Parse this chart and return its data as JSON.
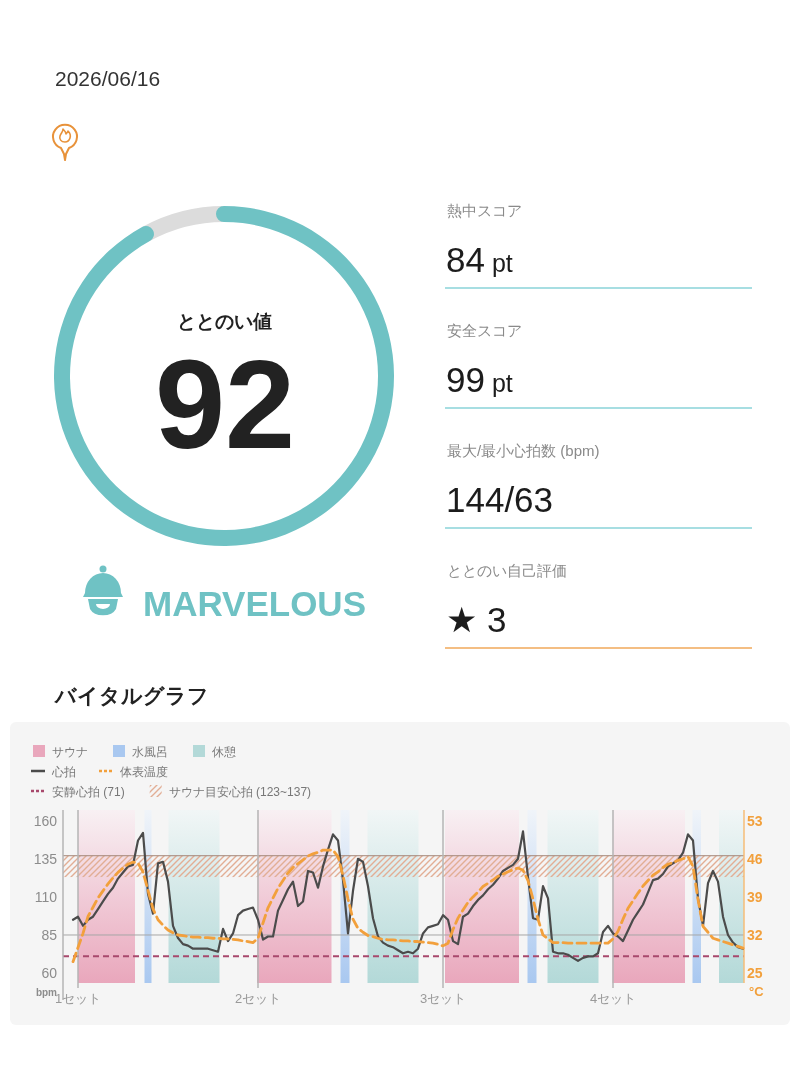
{
  "chart_data": [
    {
      "type": "other",
      "annotations": [
        "2026/06/16"
      ]
    },
    {
      "type": "donut",
      "title": "ととのい値",
      "categories": [
        null,
        null
      ],
      "values": [
        92,
        8
      ],
      "colors": [
        "#6fc2c4",
        "#dcdcdc"
      ],
      "value_labels": [
        "92",
        null
      ],
      "annotations": [
        "MARVELOUS"
      ]
    },
    {
      "type": "other",
      "annotations": [
        "熱中スコア",
        "84 pt",
        "安全スコア",
        "99 pt",
        "最大/最小心拍数 (bpm)",
        "144/63",
        "ととのい自己評価",
        "★ 3"
      ]
    },
    {
      "type": "line",
      "title": "バイタルグラフ",
      "ylabel": "bpm",
      "y2label": "°C",
      "annotations": [
        "サウナ",
        "水風呂",
        "休憩"
      ],
      "categories": [
        null,
        "1セット",
        null,
        null,
        null,
        null,
        null,
        null,
        null,
        null,
        null,
        null,
        null,
        null,
        null,
        null,
        null,
        null,
        null,
        null,
        null,
        null,
        null,
        null,
        null,
        null,
        null,
        null,
        null,
        null,
        null,
        null,
        null,
        null,
        null,
        null,
        null,
        "2セット",
        null,
        null,
        null,
        null,
        null,
        null,
        null,
        null,
        null,
        null,
        null,
        null,
        null,
        null,
        null,
        null,
        null,
        null,
        null,
        null,
        null,
        null,
        null,
        null,
        null,
        null,
        null,
        null,
        null,
        null,
        null,
        null,
        null,
        null,
        null,
        null,
        "3セット",
        null,
        null,
        null,
        null,
        null,
        null,
        null,
        null,
        null,
        null,
        null,
        null,
        null,
        null,
        null,
        null,
        null,
        null,
        null,
        null,
        null,
        null,
        null,
        null,
        null,
        null,
        null,
        null,
        null,
        null,
        null,
        null,
        null,
        "4セット",
        null,
        null,
        null,
        null,
        null,
        null,
        null,
        null,
        null,
        null,
        null,
        null,
        null,
        null,
        null,
        null,
        null,
        null,
        null,
        null,
        null,
        null,
        null,
        null,
        null,
        null
      ],
      "ylim": [
        53.5,
        167
      ],
      "yticks": [
        60,
        85,
        110,
        135,
        160
      ],
      "y2lim": [
        23.18,
        54.96
      ],
      "y2ticks": [
        25,
        32,
        39,
        46,
        53
      ],
      "grid": "x",
      "legend": "top left",
      "series": [
        {
          "name": "心拍",
          "color": "#4b4b4b",
          "values": [
            95,
            97,
            91,
            95,
            97,
            102,
            107,
            112,
            116,
            122,
            126,
            130,
            131,
            147,
            152,
            112,
            99,
            132,
            133,
            120,
            91,
            83,
            79,
            78,
            76,
            76,
            76,
            76,
            75,
            74,
            89,
            81,
            86,
            98,
            101,
            102,
            103,
            95,
            82,
            84,
            84,
            101,
            108,
            115,
            120,
            104,
            107,
            127,
            126,
            116,
            130,
            141,
            151,
            147,
            121,
            86,
            114,
            135,
            133,
            117,
            96,
            84,
            80,
            78,
            77,
            75,
            73,
            74,
            73,
            76,
            86,
            90,
            91,
            92,
            98,
            95,
            81,
            79,
            97,
            99,
            104,
            108,
            111,
            115,
            118,
            122,
            127,
            129,
            131,
            135,
            153,
            123,
            96,
            95,
            117,
            109,
            74,
            73,
            73,
            72,
            70,
            68,
            70,
            71,
            71,
            73,
            87,
            91,
            86,
            84,
            81,
            88,
            95,
            100,
            105,
            113,
            121,
            122,
            125,
            130,
            132,
            134,
            139,
            151,
            147,
            109,
            91,
            119,
            127,
            120,
            97,
            85,
            80,
            77,
            76
          ]
        },
        {
          "name": "体表温度",
          "color": "#f2a03c",
          "axis": "y2",
          "line_style": "dashed",
          "values": [
            27.1,
            29.7,
            32.3,
            35.4,
            37.1,
            38.8,
            40.1,
            41.4,
            42.5,
            43.5,
            44.3,
            45.0,
            45.4,
            45.2,
            43.6,
            40.2,
            36.8,
            34.8,
            33.8,
            32.9,
            32.4,
            32.0,
            31.9,
            31.7,
            31.6,
            31.6,
            31.5,
            31.5,
            31.4,
            31.4,
            31.3,
            31.3,
            31.2,
            31.1,
            30.9,
            30.8,
            30.6,
            31.4,
            34.2,
            37.0,
            38.8,
            40.6,
            42.0,
            43.4,
            44.4,
            45.1,
            45.8,
            46.5,
            46.9,
            47.2,
            47.6,
            47.6,
            47.6,
            46.4,
            42.9,
            38.6,
            34.9,
            33.2,
            32.5,
            31.9,
            31.7,
            31.4,
            31.2,
            31.1,
            31.1,
            31.0,
            30.9,
            30.9,
            30.8,
            30.8,
            30.7,
            30.6,
            30.5,
            30.3,
            30.0,
            30.5,
            33.0,
            35.1,
            36.6,
            38.0,
            39.0,
            39.9,
            40.9,
            41.5,
            42.1,
            42.8,
            43.2,
            43.6,
            44.0,
            44.3,
            43.9,
            42.0,
            38.6,
            34.9,
            32.0,
            31.3,
            30.6,
            30.6,
            30.6,
            30.5,
            30.5,
            30.5,
            30.5,
            30.5,
            30.5,
            30.5,
            30.5,
            30.5,
            31.3,
            32.7,
            34.9,
            36.9,
            38.3,
            39.7,
            41.0,
            42.0,
            43.0,
            43.6,
            44.4,
            45.0,
            45.3,
            45.7,
            46.0,
            46.4,
            44.6,
            38.5,
            33.6,
            32.5,
            31.4,
            31.1,
            30.8,
            30.5,
            30.2,
            29.9,
            29.6
          ]
        }
      ],
      "bands": [
        {
          "axis": "y",
          "from": 123,
          "to": 137,
          "label": "サウナ目安心拍 (123~137)",
          "color": "#e2ae95"
        }
      ],
      "ref_lines": [
        {
          "axis": "y",
          "value": 71,
          "label": "安静心拍 (71)",
          "color": "#a8486c",
          "line_style": "dashed"
        },
        {
          "axis": "y",
          "value": 85,
          "color": "#a6a6a6"
        },
        {
          "axis": "y",
          "value": 137,
          "color": "#a38678"
        }
      ]
    }
  ]
}
